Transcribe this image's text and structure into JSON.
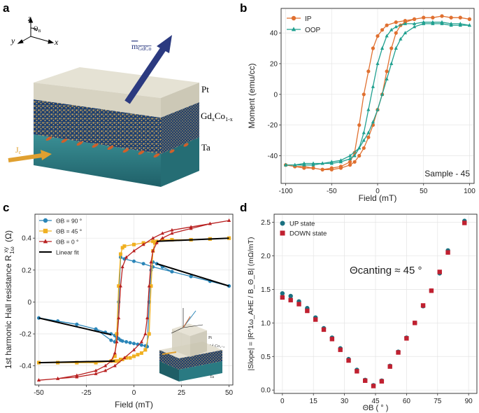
{
  "panel_labels": {
    "a": "a",
    "b": "b",
    "c": "c",
    "d": "d"
  },
  "panel_a": {
    "axes": {
      "z": "z",
      "y": "y",
      "x": "x",
      "theta": "Θ",
      "theta_sub": "B"
    },
    "moment_label": "m",
    "moment_sub": "GdCo",
    "layers": {
      "pt": "Pt",
      "gdco": "Gd",
      "gdco_x": "x",
      "gdco_co": "Co",
      "gdco_1x": "1-x",
      "ta": "Ta"
    },
    "current_label": "J",
    "current_sub": "c",
    "colors": {
      "pt": "#d9d4c4",
      "gdco_bg": "#1e3f6e",
      "gdco_dot": "#c9a45a",
      "ta": "#2f7f86",
      "arrow": "#2b3a80",
      "current": "#e0a030"
    }
  },
  "chart_data": [
    {
      "panel": "b",
      "type": "line",
      "xlabel": "Field (mT)",
      "ylabel": "Moment (emu/cc)",
      "xlim": [
        -105,
        105
      ],
      "ylim": [
        -58,
        56
      ],
      "xticks": [
        -100,
        -50,
        0,
        50,
        100
      ],
      "yticks": [
        -40,
        -20,
        0,
        20,
        40
      ],
      "grid": true,
      "legend_position": "top-left",
      "annotation": "Sample - 45",
      "series": [
        {
          "name": "IP",
          "color": "#e07030",
          "marker": "circle",
          "x_up": [
            -100,
            -90,
            -80,
            -70,
            -60,
            -50,
            -40,
            -30,
            -25,
            -20,
            -15,
            -10,
            -5,
            0,
            5,
            10,
            15,
            20,
            25,
            30,
            40,
            50,
            60,
            70,
            80,
            90,
            100
          ],
          "y_up": [
            -46,
            -47,
            -48,
            -48,
            -49,
            -49,
            -48,
            -46,
            -44,
            -40,
            -35,
            -28,
            -20,
            -10,
            0,
            15,
            30,
            40,
            45,
            47,
            49,
            50,
            50,
            51,
            50,
            50,
            49
          ],
          "x_down": [
            100,
            90,
            80,
            70,
            60,
            50,
            40,
            30,
            20,
            10,
            5,
            0,
            -5,
            -10,
            -15,
            -20,
            -25,
            -30,
            -40,
            -50,
            -60,
            -70,
            -80,
            -90,
            -100
          ],
          "y_down": [
            49,
            50,
            50,
            51,
            50,
            50,
            49,
            48,
            47,
            45,
            42,
            38,
            30,
            15,
            0,
            -20,
            -38,
            -44,
            -47,
            -48,
            -49,
            -48,
            -47,
            -47,
            -46
          ]
        },
        {
          "name": "OOP",
          "color": "#20a090",
          "marker": "triangle",
          "x_up": [
            -100,
            -90,
            -80,
            -70,
            -60,
            -50,
            -40,
            -30,
            -20,
            -15,
            -10,
            -5,
            0,
            5,
            10,
            15,
            20,
            25,
            30,
            40,
            50,
            60,
            70,
            80,
            90,
            100
          ],
          "y_up": [
            -46,
            -46,
            -45,
            -45,
            -45,
            -44,
            -43,
            -40,
            -35,
            -30,
            -25,
            -18,
            -10,
            0,
            10,
            20,
            30,
            36,
            40,
            44,
            46,
            46,
            46,
            45,
            45,
            45
          ],
          "x_down": [
            100,
            90,
            80,
            70,
            60,
            50,
            40,
            30,
            20,
            15,
            10,
            5,
            0,
            -5,
            -10,
            -15,
            -20,
            -25,
            -30,
            -40,
            -50,
            -60,
            -70,
            -80,
            -90,
            -100
          ],
          "y_down": [
            45,
            46,
            46,
            47,
            47,
            47,
            46,
            46,
            44,
            42,
            38,
            30,
            20,
            5,
            -10,
            -25,
            -35,
            -40,
            -42,
            -44,
            -45,
            -45,
            -46,
            -46,
            -46,
            -46
          ]
        }
      ]
    },
    {
      "panel": "c",
      "type": "line",
      "xlabel": "Field (mT)",
      "ylabel": "1st harmonic Hall resistance R",
      "ylabel_sup": "xy",
      "ylabel_sub": "1ω",
      "ylabel_unit": "(Ω)",
      "xlim": [
        -52,
        52
      ],
      "ylim": [
        -0.52,
        0.55
      ],
      "xticks": [
        -50,
        -25,
        0,
        25,
        50
      ],
      "yticks": [
        -0.4,
        -0.2,
        0.0,
        0.2,
        0.4
      ],
      "grid": true,
      "legend_position": "top-left",
      "series": [
        {
          "name": "Θ_B = 90 °",
          "label": "ΘB = 90 °",
          "color": "#2a85b8",
          "marker": "circle",
          "x_up": [
            -50,
            -40,
            -30,
            -20,
            -15,
            -12,
            -10,
            -9,
            -8,
            -7,
            -6,
            -4,
            -2,
            0,
            2,
            4,
            6,
            7,
            8,
            9,
            10,
            12,
            15,
            20,
            30,
            40,
            50
          ],
          "y_up": [
            -0.1,
            -0.12,
            -0.14,
            -0.17,
            -0.19,
            -0.2,
            -0.21,
            -0.22,
            -0.23,
            -0.24,
            -0.245,
            -0.25,
            -0.255,
            -0.26,
            -0.265,
            -0.27,
            -0.275,
            -0.28,
            0.0,
            0.2,
            0.25,
            0.24,
            0.22,
            0.19,
            0.16,
            0.13,
            0.1
          ],
          "x_down": [
            50,
            40,
            30,
            20,
            10,
            5,
            0,
            -5,
            -7,
            -8,
            -9,
            -10,
            -12,
            -20,
            -30,
            -40,
            -50
          ],
          "y_down": [
            0.1,
            0.13,
            0.16,
            0.19,
            0.22,
            0.24,
            0.255,
            0.27,
            0.28,
            0.0,
            -0.2,
            -0.25,
            -0.24,
            -0.17,
            -0.14,
            -0.12,
            -0.1
          ]
        },
        {
          "name": "Θ_B = 45 °",
          "label": "ΘB = 45 °",
          "color": "#f0b020",
          "marker": "square",
          "x_up": [
            -50,
            -40,
            -30,
            -20,
            -10,
            -9,
            -8,
            -7,
            -6,
            -4,
            -2,
            0,
            2,
            4,
            6,
            8,
            9,
            10,
            11,
            12,
            15,
            20,
            30,
            40,
            50
          ],
          "y_up": [
            -0.38,
            -0.38,
            -0.38,
            -0.38,
            -0.37,
            -0.37,
            -0.37,
            -0.36,
            -0.36,
            -0.35,
            -0.35,
            -0.34,
            -0.33,
            -0.32,
            -0.3,
            -0.2,
            0.1,
            0.32,
            0.37,
            0.38,
            0.39,
            0.39,
            0.39,
            0.395,
            0.4
          ],
          "x_down": [
            50,
            40,
            30,
            20,
            10,
            5,
            0,
            -5,
            -6,
            -7,
            -8,
            -9,
            -10,
            -12,
            -20,
            -30,
            -40,
            -50
          ],
          "y_down": [
            0.4,
            0.395,
            0.39,
            0.39,
            0.38,
            0.37,
            0.36,
            0.35,
            0.34,
            0.3,
            0.1,
            -0.2,
            -0.34,
            -0.37,
            -0.38,
            -0.38,
            -0.38,
            -0.38
          ]
        },
        {
          "name": "Θ_B = 0 °",
          "label": "ΘB = 0 °",
          "color": "#b82020",
          "marker": "triangle",
          "x_up": [
            -50,
            -40,
            -30,
            -20,
            -15,
            -10,
            -5,
            0,
            4,
            6,
            7,
            8,
            9,
            10,
            12,
            15,
            20,
            30,
            40,
            50
          ],
          "y_up": [
            -0.49,
            -0.48,
            -0.47,
            -0.45,
            -0.43,
            -0.4,
            -0.35,
            -0.3,
            -0.25,
            -0.2,
            -0.1,
            0.1,
            0.25,
            0.32,
            0.37,
            0.4,
            0.43,
            0.46,
            0.49,
            0.51
          ],
          "x_down": [
            50,
            40,
            30,
            20,
            15,
            10,
            5,
            0,
            -4,
            -6,
            -7,
            -8,
            -9,
            -10,
            -12,
            -15,
            -20,
            -30,
            -40,
            -50
          ],
          "y_down": [
            0.51,
            0.49,
            0.47,
            0.45,
            0.43,
            0.4,
            0.36,
            0.32,
            0.28,
            0.22,
            0.1,
            -0.1,
            -0.25,
            -0.32,
            -0.37,
            -0.4,
            -0.43,
            -0.46,
            -0.48,
            -0.49
          ]
        },
        {
          "name": "Linear fit",
          "color": "#000000",
          "marker": "line",
          "segments": [
            [
              [
                -50,
                -0.1
              ],
              [
                -12,
                -0.205
              ]
            ],
            [
              [
                12,
                0.24
              ],
              [
                50,
                0.1
              ]
            ],
            [
              [
                -50,
                -0.38
              ],
              [
                -10,
                -0.37
              ]
            ],
            [
              [
                12,
                0.38
              ],
              [
                50,
                0.4
              ]
            ]
          ]
        }
      ]
    },
    {
      "panel": "d",
      "type": "scatter",
      "xlabel": "Θ_B ( ° )",
      "xlabel_display": "ΘB ( ° )",
      "ylabel": "|Slope| = |R^1ω_AHE / B_Θ_B| (mΩ/mT)",
      "xlim": [
        -4,
        94
      ],
      "ylim": [
        -0.05,
        2.62
      ],
      "xticks": [
        0,
        15,
        30,
        45,
        60,
        75,
        90
      ],
      "yticks": [
        0.0,
        0.5,
        1.0,
        1.5,
        2.0,
        2.5
      ],
      "grid": true,
      "legend_position": "top-left",
      "annotation": "Θcanting ≈ 45 °",
      "x": [
        0,
        4,
        8,
        12,
        16,
        20,
        24,
        28,
        32,
        36,
        40,
        44,
        48,
        52,
        56,
        60,
        64,
        68,
        72,
        76,
        80,
        84,
        88,
        90
      ],
      "series": [
        {
          "name": "UP state",
          "color": "#1a7080",
          "marker": "circle",
          "values": [
            1.44,
            1.4,
            1.32,
            1.22,
            1.08,
            0.92,
            0.78,
            0.62,
            0.46,
            0.3,
            0.15,
            0.07,
            0.14,
            0.36,
            0.57,
            0.78,
            1.0,
            1.25,
            1.48,
            1.74,
            2.08,
            2.52,
            null,
            null
          ]
        },
        {
          "name": "DOWN state",
          "color": "#c02030",
          "marker": "square",
          "values": [
            1.38,
            1.34,
            1.28,
            1.18,
            1.05,
            0.9,
            0.76,
            0.6,
            0.44,
            0.28,
            0.14,
            0.06,
            0.13,
            0.35,
            0.56,
            0.77,
            1.0,
            1.26,
            1.48,
            1.76,
            2.05,
            2.49,
            null,
            null
          ]
        }
      ]
    }
  ]
}
